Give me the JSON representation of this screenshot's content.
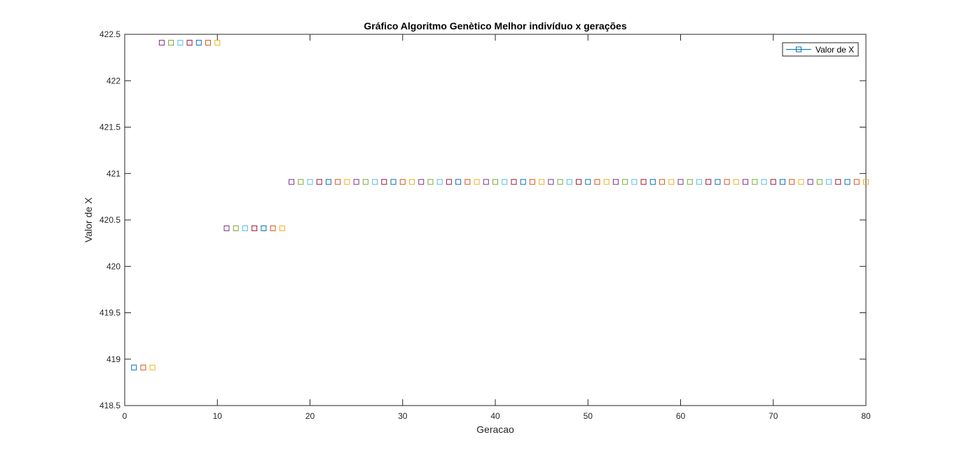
{
  "chart_data": {
    "type": "scatter",
    "title": "Gráfico Algoritmo Genètico Melhor indivíduo x gerações",
    "xlabel": "Geracao",
    "ylabel": "Valor de X",
    "xlim": [
      0,
      80
    ],
    "ylim": [
      418.5,
      422.5
    ],
    "xticks": [
      0,
      10,
      20,
      30,
      40,
      50,
      60,
      70,
      80
    ],
    "yticks": [
      418.5,
      419,
      419.5,
      420,
      420.5,
      421,
      421.5,
      422,
      422.5
    ],
    "xtick_labels": [
      "0",
      "10",
      "20",
      "30",
      "40",
      "50",
      "60",
      "70",
      "80"
    ],
    "ytick_labels": [
      "418.5",
      "419",
      "419.5",
      "420",
      "420.5",
      "421",
      "421.5",
      "422",
      "422.5"
    ],
    "grid": false,
    "marker": "square",
    "legend": {
      "location": "top-right",
      "entries": [
        "Valor de X"
      ]
    },
    "series": [
      {
        "name": "Valor de X",
        "x": [
          1,
          2,
          3,
          4,
          5,
          6,
          7,
          8,
          9,
          10,
          11,
          12,
          13,
          14,
          15,
          16,
          17,
          18,
          19,
          20,
          21,
          22,
          23,
          24,
          25,
          26,
          27,
          28,
          29,
          30,
          31,
          32,
          33,
          34,
          35,
          36,
          37,
          38,
          39,
          40,
          41,
          42,
          43,
          44,
          45,
          46,
          47,
          48,
          49,
          50,
          51,
          52,
          53,
          54,
          55,
          56,
          57,
          58,
          59,
          60,
          61,
          62,
          63,
          64,
          65,
          66,
          67,
          68,
          69,
          70,
          71,
          72,
          73,
          74,
          75,
          76,
          77,
          78,
          79,
          80
        ],
        "y": [
          418.91,
          418.91,
          418.91,
          422.41,
          422.41,
          422.41,
          422.41,
          422.41,
          422.41,
          422.41,
          420.41,
          420.41,
          420.41,
          420.41,
          420.41,
          420.41,
          420.41,
          420.91,
          420.91,
          420.91,
          420.91,
          420.91,
          420.91,
          420.91,
          420.91,
          420.91,
          420.91,
          420.91,
          420.91,
          420.91,
          420.91,
          420.91,
          420.91,
          420.91,
          420.91,
          420.91,
          420.91,
          420.91,
          420.91,
          420.91,
          420.91,
          420.91,
          420.91,
          420.91,
          420.91,
          420.91,
          420.91,
          420.91,
          420.91,
          420.91,
          420.91,
          420.91,
          420.91,
          420.91,
          420.91,
          420.91,
          420.91,
          420.91,
          420.91,
          420.91,
          420.91,
          420.91,
          420.91,
          420.91,
          420.91,
          420.91,
          420.91,
          420.91,
          420.91,
          420.91,
          420.91,
          420.91,
          420.91,
          420.91,
          420.91,
          420.91,
          420.91,
          420.91,
          420.91,
          420.91
        ]
      }
    ],
    "colors": [
      "#0072BD",
      "#D95319",
      "#EDB120",
      "#7E2F8E",
      "#77AC30",
      "#4DBEEE",
      "#A2142F"
    ],
    "legend_color": "#0072BD"
  }
}
